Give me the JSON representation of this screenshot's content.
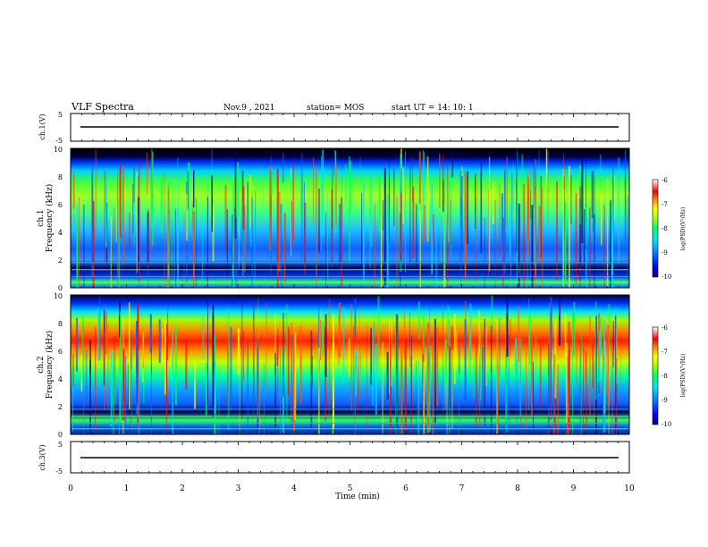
{
  "header": {
    "title": "VLF Spectra",
    "date": "Nov.9 , 2021",
    "station": "station= MOS",
    "start": "start UT = 14: 10: 1"
  },
  "chart_data": [
    {
      "type": "line",
      "name": "ch.1 waveform",
      "ylabel": "ch.1(V)",
      "ylim": [
        -5,
        5
      ],
      "y_ticks": [
        "5",
        "-5"
      ],
      "baseline": -1.5
    },
    {
      "type": "heatmap",
      "name": "ch.1 spectrogram",
      "ylabel": "ch.1\nFrequency (kHz)",
      "ylim": [
        0,
        10
      ],
      "y_ticks": [
        "0",
        "2",
        "4",
        "6",
        "8",
        "10"
      ],
      "colorbar": {
        "label": "log(PSD)(V²/Hz)",
        "ticks": [
          "-6",
          "-7",
          "-8",
          "-9",
          "-10"
        ],
        "range": [
          -10,
          -6
        ]
      }
    },
    {
      "type": "heatmap",
      "name": "ch.2 spectrogram",
      "ylabel": "ch.2\nFrequency (kHz)",
      "ylim": [
        0,
        10
      ],
      "y_ticks": [
        "0",
        "2",
        "4",
        "6",
        "8",
        "10"
      ],
      "colorbar": {
        "label": "log(PSD)(V²/Hz)",
        "ticks": [
          "-6",
          "-7",
          "-8",
          "-9",
          "-10"
        ],
        "range": [
          -10,
          -6
        ]
      }
    },
    {
      "type": "line",
      "name": "ch.3 waveform",
      "ylabel": "ch.3(V)",
      "ylim": [
        -5,
        5
      ],
      "y_ticks": [
        "5",
        "-5"
      ],
      "baseline": -1.5
    }
  ],
  "x_axis": {
    "label": "Time (min)",
    "range": [
      0,
      10
    ],
    "ticks": [
      "0",
      "1",
      "2",
      "3",
      "4",
      "5",
      "6",
      "7",
      "8",
      "9",
      "10"
    ]
  },
  "colors": {
    "cmap": [
      "#000088",
      "#0000ff",
      "#0080ff",
      "#00e0ff",
      "#00ff80",
      "#a0ff00",
      "#ffff00",
      "#ff8000",
      "#ff0000",
      "#ff9090",
      "#ffffff"
    ]
  }
}
